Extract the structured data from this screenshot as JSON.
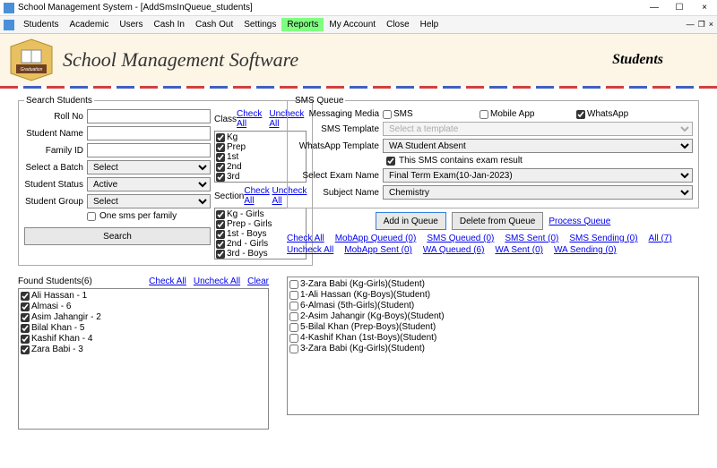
{
  "window": {
    "title": "School Management System - [AddSmsInQueue_students]"
  },
  "menu": {
    "items": [
      "Students",
      "Academic",
      "Users",
      "Cash In",
      "Cash Out",
      "Settings",
      "Reports",
      "My Account",
      "Close",
      "Help"
    ],
    "highlighted_index": 6,
    "sub_minimize": "—",
    "sub_restore": "❐",
    "sub_close": "×"
  },
  "banner": {
    "title": "School Management Software",
    "section": "Students",
    "logo_text": "Graduation"
  },
  "search": {
    "legend": "Search Students",
    "roll_no_label": "Roll No",
    "roll_no": "",
    "student_name_label": "Student Name",
    "student_name": "",
    "family_id_label": "Family ID",
    "family_id": "",
    "batch_label": "Select a Batch",
    "batch": "Select",
    "status_label": "Student Status",
    "status": "Active",
    "group_label": "Student Group",
    "group": "Select",
    "one_sms_label": "One sms per family",
    "one_sms": false,
    "search_btn": "Search"
  },
  "class": {
    "label": "Class",
    "check_all": "Check All",
    "uncheck_all": "Uncheck All",
    "items": [
      {
        "label": "Kg",
        "checked": true
      },
      {
        "label": "Prep",
        "checked": true
      },
      {
        "label": "1st",
        "checked": true
      },
      {
        "label": "2nd",
        "checked": true
      },
      {
        "label": "3rd",
        "checked": true
      }
    ]
  },
  "section": {
    "label": "Section",
    "check_all": "Check All",
    "uncheck_all": "Uncheck All",
    "items": [
      {
        "label": "Kg - Girls",
        "checked": true
      },
      {
        "label": "Prep - Girls",
        "checked": true
      },
      {
        "label": "1st - Boys",
        "checked": true
      },
      {
        "label": "2nd - Girls",
        "checked": true
      },
      {
        "label": "3rd - Boys",
        "checked": true
      }
    ]
  },
  "sms_queue": {
    "legend": "SMS Queue",
    "media_label": "Messaging Media",
    "media": [
      {
        "label": "SMS",
        "checked": false
      },
      {
        "label": "Mobile App",
        "checked": false
      },
      {
        "label": "WhatsApp",
        "checked": true
      }
    ],
    "sms_template_label": "SMS Template",
    "sms_template_placeholder": "Select a template",
    "wa_template_label": "WhatsApp Template",
    "wa_template": "WA Student Absent",
    "contains_exam_label": "This SMS contains exam result",
    "contains_exam": true,
    "exam_name_label": "Select Exam Name",
    "exam_name": "Final Term Exam(10-Jan-2023)",
    "subject_label": "Subject Name",
    "subject": "Chemistry",
    "btn_add": "Add in Queue",
    "btn_delete": "Delete from Queue",
    "link_process": "Process Queue"
  },
  "queue_links_top": {
    "check_all": "Check All",
    "mobapp_queued": "MobApp Queued (0)",
    "sms_queued": "SMS Queued (0)",
    "sms_sent": "SMS Sent (0)",
    "sms_sending": "SMS Sending (0)",
    "all": "All (7)"
  },
  "queue_links_bottom": {
    "uncheck_all": "Uncheck All",
    "mobapp_sent": "MobApp Sent (0)",
    "wa_queued": "WA Queued (6)",
    "wa_sent": "WA Sent (0)",
    "wa_sending": "WA Sending (0)"
  },
  "found": {
    "header": "Found Students(6)",
    "check_all": "Check All",
    "uncheck_all": "Uncheck All",
    "clear": "Clear",
    "items": [
      {
        "label": "Ali Hassan - 1",
        "checked": true
      },
      {
        "label": "Almasi - 6",
        "checked": true
      },
      {
        "label": "Asim Jahangir - 2",
        "checked": true
      },
      {
        "label": "Bilal Khan - 5",
        "checked": true
      },
      {
        "label": "Kashif Khan - 4",
        "checked": true
      },
      {
        "label": "Zara Babi - 3",
        "checked": true
      }
    ]
  },
  "queue_items": [
    {
      "label": "3-Zara Babi (Kg-Girls)(Student)",
      "checked": false
    },
    {
      "label": "1-Ali Hassan (Kg-Boys)(Student)",
      "checked": false
    },
    {
      "label": "6-Almasi (5th-Girls)(Student)",
      "checked": false
    },
    {
      "label": "2-Asim Jahangir (Kg-Boys)(Student)",
      "checked": false
    },
    {
      "label": "5-Bilal Khan (Prep-Boys)(Student)",
      "checked": false
    },
    {
      "label": "4-Kashif Khan (1st-Boys)(Student)",
      "checked": false
    },
    {
      "label": "3-Zara Babi (Kg-Girls)(Student)",
      "checked": false
    }
  ]
}
